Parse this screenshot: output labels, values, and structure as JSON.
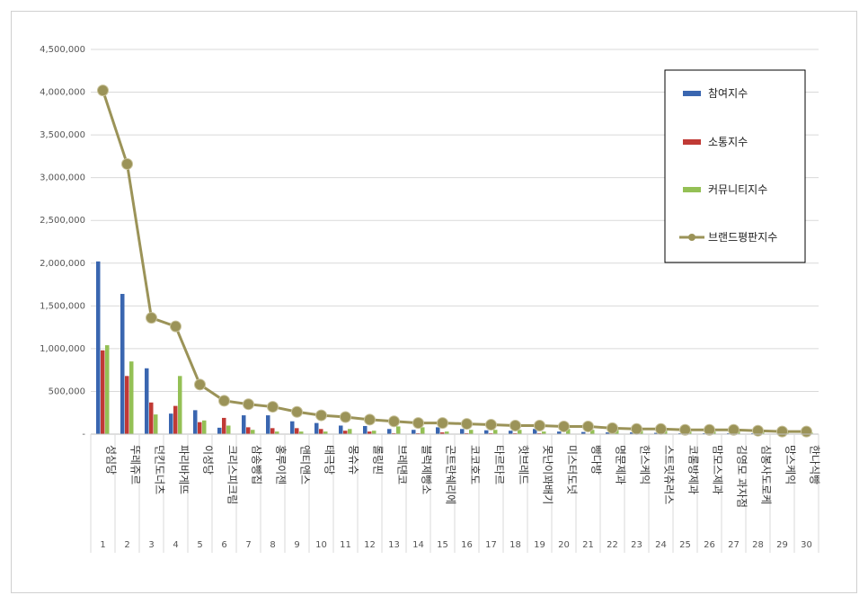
{
  "chart_data": {
    "type": "bar",
    "legend_position": "right",
    "grid": true,
    "ylim": [
      0,
      4500000
    ],
    "yticks": [
      "-",
      "500,000",
      "1,000,000",
      "1,500,000",
      "2,000,000",
      "2,500,000",
      "3,000,000",
      "3,500,000",
      "4,000,000",
      "4,500,000"
    ],
    "ranks": [
      "1",
      "2",
      "3",
      "4",
      "5",
      "6",
      "7",
      "8",
      "9",
      "10",
      "11",
      "12",
      "13",
      "14",
      "15",
      "16",
      "17",
      "18",
      "19",
      "20",
      "21",
      "22",
      "23",
      "24",
      "25",
      "26",
      "27",
      "28",
      "29",
      "30"
    ],
    "categories": [
      "성심당",
      "뚜레쥬르",
      "던킨도너츠",
      "파리바게뜨",
      "이성당",
      "크리스피크림",
      "삼송빵집",
      "홍루이젠",
      "앤티앤스",
      "태극당",
      "몽슈슈",
      "롤링핀",
      "브레댄코",
      "블럭제빵소",
      "곤트란쉐리에",
      "코코호도",
      "타르타르",
      "핫브레드",
      "못난이꽈배기",
      "미스터도넛",
      "빵다방",
      "명문제과",
      "한스케익",
      "스트릿츄러스",
      "코롬방제과",
      "맘모스제과",
      "김영모 과자점",
      "심봉사도로케",
      "망스케익",
      "한나식빵"
    ],
    "series": [
      {
        "name": "참여지수",
        "kind": "bar",
        "color": "#3a66b0",
        "values": [
          2020000,
          1640000,
          770000,
          240000,
          280000,
          75000,
          220000,
          220000,
          150000,
          130000,
          100000,
          95000,
          60000,
          50000,
          80000,
          60000,
          45000,
          40000,
          60000,
          30000,
          25000,
          20000,
          20000,
          15000,
          10000,
          10000,
          10000,
          10000,
          5000,
          5000
        ]
      },
      {
        "name": "소통지수",
        "kind": "bar",
        "color": "#c03a35",
        "values": [
          980000,
          680000,
          370000,
          330000,
          140000,
          190000,
          80000,
          70000,
          70000,
          60000,
          40000,
          30000,
          10000,
          10000,
          20000,
          10000,
          10000,
          10000,
          10000,
          5000,
          5000,
          5000,
          5000,
          5000,
          5000,
          5000,
          5000,
          5000,
          5000,
          5000
        ]
      },
      {
        "name": "커뮤니티지수",
        "kind": "bar",
        "color": "#94c055",
        "values": [
          1040000,
          850000,
          230000,
          680000,
          160000,
          100000,
          50000,
          30000,
          30000,
          30000,
          60000,
          40000,
          90000,
          80000,
          30000,
          50000,
          50000,
          50000,
          30000,
          60000,
          50000,
          50000,
          40000,
          40000,
          30000,
          30000,
          30000,
          20000,
          20000,
          20000
        ]
      },
      {
        "name": "브랜드평판지수",
        "kind": "line",
        "color": "#9b9358",
        "values": [
          4020000,
          3160000,
          1360000,
          1260000,
          580000,
          390000,
          350000,
          320000,
          260000,
          220000,
          200000,
          170000,
          150000,
          130000,
          130000,
          120000,
          110000,
          100000,
          100000,
          90000,
          90000,
          70000,
          60000,
          60000,
          50000,
          50000,
          50000,
          40000,
          30000,
          30000
        ]
      }
    ]
  }
}
